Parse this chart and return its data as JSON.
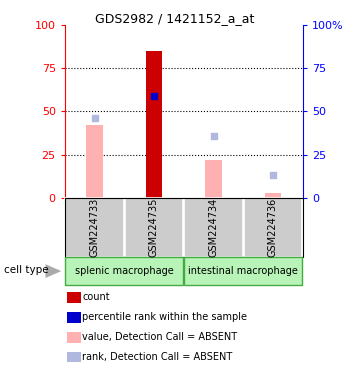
{
  "title": "GDS2982 / 1421152_a_at",
  "samples": [
    "GSM224733",
    "GSM224735",
    "GSM224734",
    "GSM224736"
  ],
  "group_labels": [
    "splenic macrophage",
    "intestinal macrophage"
  ],
  "count_values": [
    0,
    85,
    0,
    0
  ],
  "count_color": "#cc0000",
  "value_absent_values": [
    42,
    0,
    22,
    3
  ],
  "value_absent_color": "#ffb0b0",
  "rank_pct_values": [
    0,
    59,
    0,
    0
  ],
  "rank_pct_color": "#0000cc",
  "rank_absent_values": [
    46,
    0,
    36,
    13
  ],
  "rank_absent_color": "#b0b8e0",
  "ylim": [
    0,
    100
  ],
  "left_yticks": [
    0,
    25,
    50,
    75,
    100
  ],
  "right_yticks": [
    0,
    25,
    50,
    75,
    100
  ],
  "sample_panel_color": "#cccccc",
  "group_panel_color": "#b8f4b8",
  "legend_items": [
    {
      "label": "count",
      "color": "#cc0000"
    },
    {
      "label": "percentile rank within the sample",
      "color": "#0000cc"
    },
    {
      "label": "value, Detection Call = ABSENT",
      "color": "#ffb0b0"
    },
    {
      "label": "rank, Detection Call = ABSENT",
      "color": "#b0b8e0"
    }
  ]
}
